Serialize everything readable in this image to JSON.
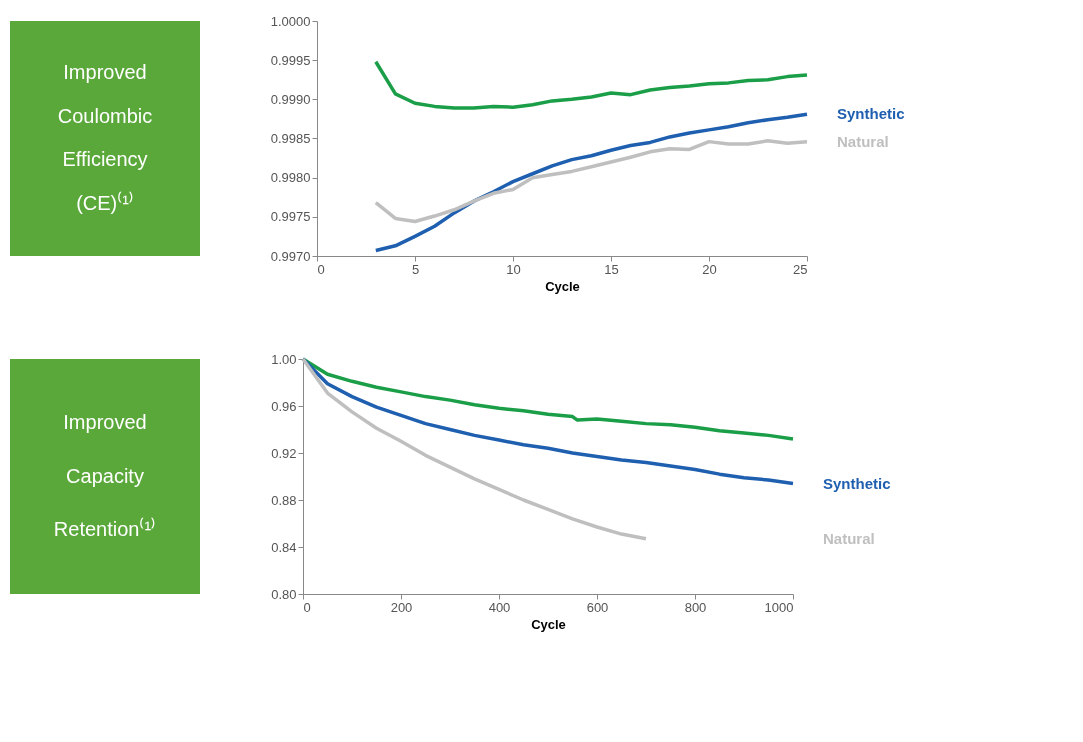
{
  "chart_data": [
    {
      "type": "line",
      "title": "Improved Coulombic Efficiency (CE)⁽¹⁾",
      "xlabel": "Cycle",
      "xlim": [
        0,
        25
      ],
      "xticks": [
        0,
        5,
        10,
        15,
        20,
        25
      ],
      "ylim": [
        0.997,
        1.0
      ],
      "yticks": [
        {
          "value": 0.997,
          "label": "0.9970"
        },
        {
          "value": 0.9975,
          "label": "0.9975"
        },
        {
          "value": 0.998,
          "label": "0.9980"
        },
        {
          "value": 0.9985,
          "label": "0.9985"
        },
        {
          "value": 0.999,
          "label": "0.9990"
        },
        {
          "value": 0.9995,
          "label": "0.9995"
        },
        {
          "value": 1.0,
          "label": "1.0000"
        }
      ],
      "grid": false,
      "legend": false,
      "x": [
        3,
        4,
        5,
        6,
        7,
        8,
        9,
        10,
        11,
        12,
        13,
        14,
        15,
        16,
        17,
        18,
        19,
        20,
        21,
        22,
        23,
        24,
        25
      ],
      "series": [
        {
          "color": "#1a9e48",
          "values": [
            0.99948,
            0.99907,
            0.99895,
            0.99891,
            0.99889,
            0.99889,
            0.99891,
            0.9989,
            0.99893,
            0.99898,
            0.999,
            0.99903,
            0.99908,
            0.99906,
            0.99912,
            0.99915,
            0.99917,
            0.9992,
            0.99921,
            0.99924,
            0.99925,
            0.99929,
            0.99931
          ]
        },
        {
          "name": "Synthetic",
          "color": "#1f5fb0",
          "values": [
            0.99707,
            0.99713,
            0.99725,
            0.99738,
            0.99755,
            0.9977,
            0.99782,
            0.99795,
            0.99805,
            0.99815,
            0.99823,
            0.99828,
            0.99835,
            0.99841,
            0.99845,
            0.99852,
            0.99857,
            0.99861,
            0.99865,
            0.9987,
            0.99874,
            0.99877,
            0.99881
          ]
        },
        {
          "name": "Natural",
          "color": "#bfbfbf",
          "values": [
            0.99768,
            0.99748,
            0.99744,
            0.99751,
            0.99759,
            0.9977,
            0.9978,
            0.99785,
            0.998,
            0.99804,
            0.99808,
            0.99814,
            0.9982,
            0.99826,
            0.99833,
            0.99837,
            0.99836,
            0.99846,
            0.99843,
            0.99843,
            0.99847,
            0.99844,
            0.99846
          ]
        }
      ]
    },
    {
      "type": "line",
      "title": "Improved Capacity Retention⁽¹⁾",
      "xlabel": "Cycle",
      "xlim": [
        0,
        1000
      ],
      "xticks": [
        0,
        200,
        400,
        600,
        800,
        1000
      ],
      "ylim": [
        0.8,
        1.0
      ],
      "yticks": [
        {
          "value": 0.8,
          "label": "0.80"
        },
        {
          "value": 0.84,
          "label": "0.84"
        },
        {
          "value": 0.88,
          "label": "0.88"
        },
        {
          "value": 0.92,
          "label": "0.92"
        },
        {
          "value": 0.96,
          "label": "0.96"
        },
        {
          "value": 1.0,
          "label": "1.00"
        }
      ],
      "grid": false,
      "legend": false,
      "series": [
        {
          "color": "#1a9e48",
          "x": [
            0,
            50,
            100,
            150,
            200,
            250,
            300,
            350,
            400,
            450,
            500,
            550,
            560,
            600,
            650,
            700,
            750,
            800,
            850,
            900,
            950,
            1000
          ],
          "values": [
            1.0,
            0.987,
            0.981,
            0.976,
            0.972,
            0.968,
            0.965,
            0.961,
            0.958,
            0.956,
            0.953,
            0.951,
            0.948,
            0.949,
            0.947,
            0.945,
            0.944,
            0.942,
            0.939,
            0.937,
            0.935,
            0.932
          ]
        },
        {
          "name": "Synthetic",
          "color": "#1f5fb0",
          "x": [
            0,
            50,
            100,
            150,
            200,
            250,
            300,
            350,
            400,
            450,
            500,
            550,
            600,
            650,
            700,
            750,
            800,
            850,
            900,
            950,
            1000
          ],
          "values": [
            1.0,
            0.979,
            0.968,
            0.959,
            0.952,
            0.945,
            0.94,
            0.935,
            0.931,
            0.927,
            0.924,
            0.92,
            0.917,
            0.914,
            0.912,
            0.909,
            0.906,
            0.902,
            0.899,
            0.897,
            0.894
          ]
        },
        {
          "name": "Natural",
          "color": "#bfbfbf",
          "x": [
            0,
            50,
            100,
            150,
            200,
            250,
            300,
            350,
            400,
            450,
            500,
            550,
            600,
            650,
            700
          ],
          "values": [
            1.0,
            0.971,
            0.955,
            0.941,
            0.93,
            0.918,
            0.908,
            0.898,
            0.889,
            0.88,
            0.872,
            0.864,
            0.857,
            0.851,
            0.847
          ]
        }
      ]
    }
  ]
}
